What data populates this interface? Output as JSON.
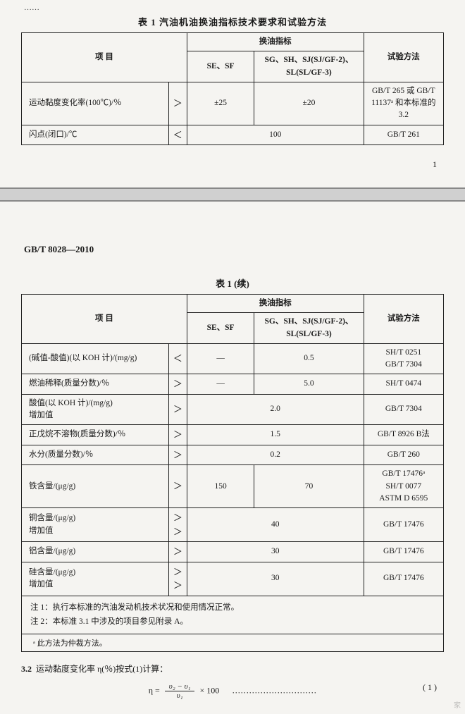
{
  "page1": {
    "truncated": "……",
    "title": "表 1  汽油机油换油指标技术要求和试验方法",
    "header": {
      "item": "项    目",
      "indicator": "换油指标",
      "sesf": "SE、SF",
      "sg": "SG、SH、SJ(SJ/GF-2)、SL(SL/GF-3)",
      "method": "试验方法"
    },
    "rows": [
      {
        "item": "运动黏度变化率(100℃)/％",
        "sym": "＞",
        "sesf": "±25",
        "sg": "±20",
        "method": "GB/T 265 或 GB/T 11137ᵃ 和本标准的 3.2"
      },
      {
        "item": "闪点(闭口)/℃",
        "sym": "＜",
        "merged": "100",
        "method": "GB/T 261"
      }
    ],
    "pagenum": "1"
  },
  "page2": {
    "std": "GB/T 8028—2010",
    "subtitle": "表 1 (续)",
    "header": {
      "item": "项    目",
      "indicator": "换油指标",
      "sesf": "SE、SF",
      "sg": "SG、SH、SJ(SJ/GF-2)、SL(SL/GF-3)",
      "method": "试验方法"
    },
    "rows": [
      {
        "item": "(碱值-酸值)(以 KOH 计)/(mg/g)",
        "sym": "＜",
        "sesf": "—",
        "sg": "0.5",
        "method": "SH/T 0251\nGB/T 7304"
      },
      {
        "item": "燃油稀释(质量分数)/％",
        "sym": "＞",
        "sesf": "—",
        "sg": "5.0",
        "method": "SH/T 0474"
      },
      {
        "item": "酸值(以 KOH 计)/(mg/g)\n增加值",
        "sym": "＞",
        "merged": "2.0",
        "method": "GB/T 7304"
      },
      {
        "item": "正戊烷不溶物(质量分数)/％",
        "sym": "＞",
        "merged": "1.5",
        "method": "GB/T 8926 B法"
      },
      {
        "item": "水分(质量分数)/％",
        "sym": "＞",
        "merged": "0.2",
        "method": "GB/T 260"
      },
      {
        "item": "铁含量/(μg/g)",
        "sym": "＞",
        "sesf": "150",
        "sg": "70",
        "method": "GB/T 17476ᵃ\nSH/T 0077\nASTM D 6595"
      },
      {
        "item": "铜含量/(μg/g)\n增加值",
        "sym": "＞\n＞",
        "merged": "40",
        "method": "GB/T 17476"
      },
      {
        "item": "铝含量/(μg/g)",
        "sym": "＞",
        "merged": "30",
        "method": "GB/T 17476"
      },
      {
        "item": "硅含量/(μg/g)\n增加值",
        "sym": "＞\n＞",
        "merged": "30",
        "method": "GB/T 17476"
      }
    ],
    "note1": "注 1：执行本标准的汽油发动机技术状况和使用情况正常。",
    "note2": "注 2：本标准 3.1 中涉及的项目参见附录 A。",
    "footnote": "ᵃ 此方法为仲裁方法。",
    "sec32_label": "3.2",
    "sec32_text": "运动黏度变化率 η(％)按式(1)计算：",
    "formula_lhs": "η =",
    "formula_num": "υ₂ − υ₁",
    "formula_den": "υ₁",
    "formula_rhs": "× 100",
    "formula_dots": "…………………………",
    "formula_eqnum": "( 1 )"
  }
}
